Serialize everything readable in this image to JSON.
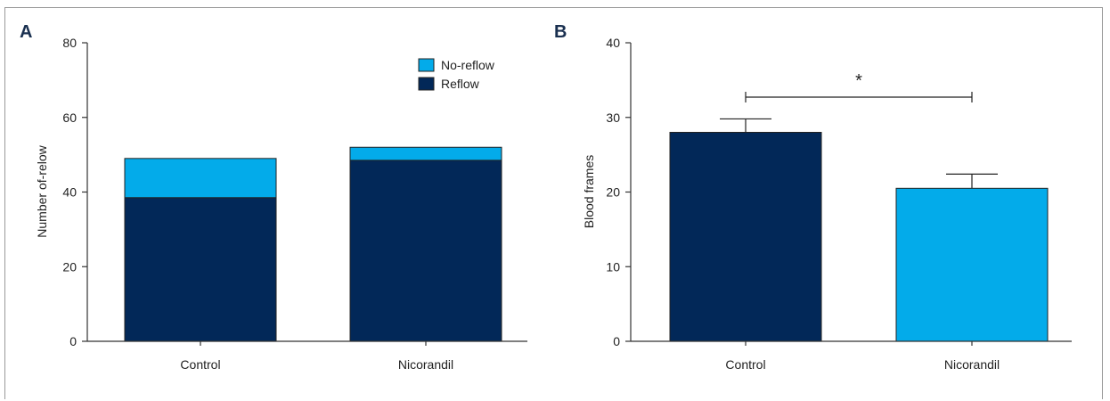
{
  "colors": {
    "dark": "#022858",
    "light": "#03ABEA",
    "axis": "#333333",
    "frame": "#9a9a9a"
  },
  "chart_data": [
    {
      "panel": "A",
      "type": "bar",
      "stacked": true,
      "categories": [
        "Control",
        "Nicorandil"
      ],
      "series": [
        {
          "name": "Reflow",
          "values": [
            38.5,
            48.5
          ],
          "color": "#022858"
        },
        {
          "name": "No-reflow",
          "values": [
            10.5,
            3.5
          ],
          "color": "#03ABEA"
        }
      ],
      "ylabel": "Number of-relow",
      "ylim": [
        0,
        80
      ],
      "yticks": [
        "0",
        "20",
        "40",
        "60",
        "80"
      ],
      "legend_placement": "top-right",
      "legend_order": [
        "No-reflow",
        "Reflow"
      ]
    },
    {
      "panel": "B",
      "type": "bar",
      "categories": [
        "Control",
        "Nicorandil"
      ],
      "values": [
        28,
        20.5
      ],
      "errors": [
        1.8,
        1.9
      ],
      "colors": [
        "#022858",
        "#03ABEA"
      ],
      "ylabel": "Blood frames",
      "ylim": [
        0,
        40
      ],
      "yticks": [
        "0",
        "10",
        "20",
        "30",
        "40"
      ],
      "significance": {
        "between": [
          "Control",
          "Nicorandil"
        ],
        "label": "*"
      }
    }
  ]
}
